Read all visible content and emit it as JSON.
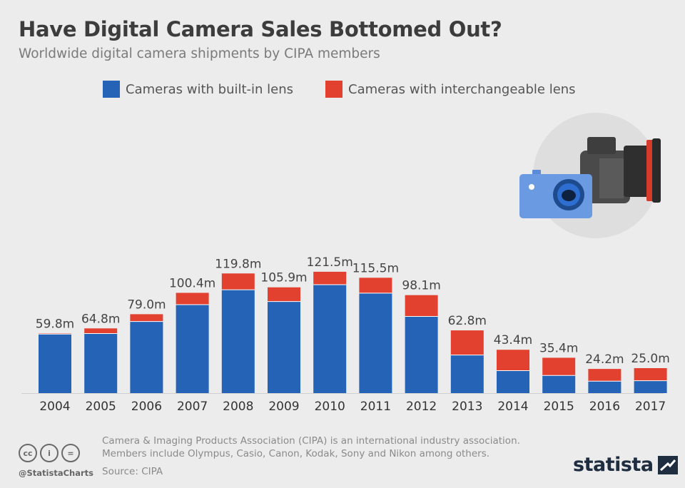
{
  "header": {
    "title": "Have Digital Camera Sales Bottomed Out?",
    "subtitle": "Worldwide digital camera shipments by CIPA members"
  },
  "colors": {
    "built_in": "#2563b7",
    "interchangeable": "#e2412f",
    "background": "#ececec"
  },
  "chart_data": {
    "type": "bar",
    "stacked": true,
    "categories": [
      "2004",
      "2005",
      "2006",
      "2007",
      "2008",
      "2009",
      "2010",
      "2011",
      "2012",
      "2013",
      "2014",
      "2015",
      "2016",
      "2017"
    ],
    "series": [
      {
        "name": "Cameras with built-in lens",
        "values": [
          59.1,
          59.6,
          71.7,
          88.6,
          103.5,
          91.7,
          108.6,
          100.1,
          76.8,
          38.1,
          22.5,
          17.7,
          12.0,
          12.4
        ]
      },
      {
        "name": "Cameras with interchangeable lens",
        "values": [
          0.7,
          5.2,
          7.3,
          11.8,
          16.3,
          14.2,
          12.9,
          15.4,
          21.3,
          24.7,
          20.9,
          17.7,
          12.2,
          12.6
        ]
      }
    ],
    "total_labels": [
      "59.8m",
      "64.8m",
      "79.0m",
      "100.4m",
      "119.8m",
      "105.9m",
      "121.5m",
      "115.5m",
      "98.1m",
      "62.8m",
      "43.4m",
      "35.4m",
      "24.2m",
      "25.0m"
    ],
    "ylim": [
      0,
      130
    ],
    "legend_position": "top",
    "grid": false
  },
  "footer": {
    "note_line1": "Camera & Imaging Products Association (CIPA) is an international industry association.",
    "note_line2": "Members include Olympus, Casio, Canon, Kodak, Sony and Nikon among others.",
    "source": "Source: CIPA",
    "handle": "@StatistaCharts",
    "brand": "statista",
    "cc_icons": [
      "cc",
      "i",
      "="
    ]
  }
}
